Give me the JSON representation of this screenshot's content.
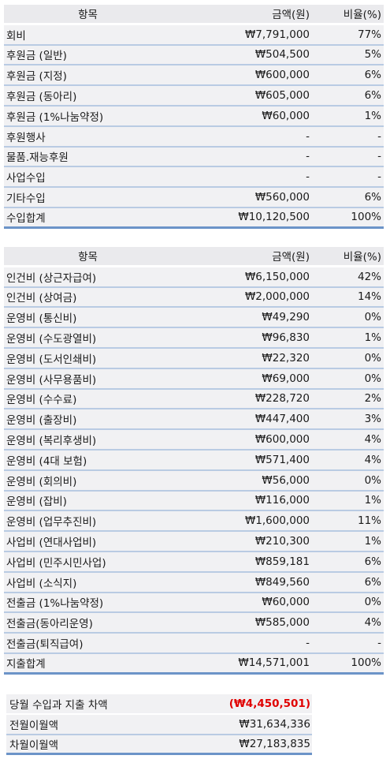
{
  "income": {
    "headers": [
      "항목",
      "금액(원)",
      "비율(%)"
    ],
    "rows": [
      {
        "item": "회비",
        "amount": "₩7,791,000",
        "ratio": "77%"
      },
      {
        "item": "후원금 (일반)",
        "amount": "₩504,500",
        "ratio": "5%"
      },
      {
        "item": "후원금 (지정)",
        "amount": "₩600,000",
        "ratio": "6%"
      },
      {
        "item": "후원금 (동아리)",
        "amount": "₩605,000",
        "ratio": "6%"
      },
      {
        "item": "후원금 (1%나눔약정)",
        "amount": "₩60,000",
        "ratio": "1%"
      },
      {
        "item": "후원행사",
        "amount": "-",
        "ratio": "-"
      },
      {
        "item": "물품.재능후원",
        "amount": "-",
        "ratio": "-"
      },
      {
        "item": "사업수입",
        "amount": "-",
        "ratio": "-"
      },
      {
        "item": "기타수입",
        "amount": "₩560,000",
        "ratio": "6%"
      }
    ],
    "total": {
      "item": "수입합계",
      "amount": "₩10,120,500",
      "ratio": "100%"
    }
  },
  "expense": {
    "headers": [
      "항목",
      "금액(원)",
      "비율(%)"
    ],
    "rows": [
      {
        "item": "인건비 (상근자급여)",
        "amount": "₩6,150,000",
        "ratio": "42%"
      },
      {
        "item": "인건비 (상여금)",
        "amount": "₩2,000,000",
        "ratio": "14%"
      },
      {
        "item": "운영비 (통신비)",
        "amount": "₩49,290",
        "ratio": "0%"
      },
      {
        "item": "운영비 (수도광열비)",
        "amount": "₩96,830",
        "ratio": "1%"
      },
      {
        "item": "운영비 (도서인쇄비)",
        "amount": "₩22,320",
        "ratio": "0%"
      },
      {
        "item": "운영비 (사무용품비)",
        "amount": "₩69,000",
        "ratio": "0%"
      },
      {
        "item": "운영비 (수수료)",
        "amount": "₩228,720",
        "ratio": "2%"
      },
      {
        "item": "운영비 (출장비)",
        "amount": "₩447,400",
        "ratio": "3%"
      },
      {
        "item": "운영비 (복리후생비)",
        "amount": "₩600,000",
        "ratio": "4%"
      },
      {
        "item": "운영비 (4대 보험)",
        "amount": "₩571,400",
        "ratio": "4%"
      },
      {
        "item": "운영비 (회의비)",
        "amount": "₩56,000",
        "ratio": "0%"
      },
      {
        "item": "운영비 (잡비)",
        "amount": "₩116,000",
        "ratio": "1%"
      },
      {
        "item": "운영비 (업무추진비)",
        "amount": "₩1,600,000",
        "ratio": "11%"
      },
      {
        "item": "사업비 (연대사업비)",
        "amount": "₩210,300",
        "ratio": "1%"
      },
      {
        "item": "사업비 (민주시민사업)",
        "amount": "₩859,181",
        "ratio": "6%"
      },
      {
        "item": "사업비 (소식지)",
        "amount": "₩849,560",
        "ratio": "6%"
      },
      {
        "item": "전출금 (1%나눔약정)",
        "amount": "₩60,000",
        "ratio": "0%"
      },
      {
        "item": "전출금(동아리운영)",
        "amount": "₩585,000",
        "ratio": "4%"
      },
      {
        "item": "전출금(퇴직급여)",
        "amount": "-",
        "ratio": "-"
      }
    ],
    "total": {
      "item": "지출합계",
      "amount": "₩14,571,001",
      "ratio": "100%"
    }
  },
  "summary": {
    "diff_label": "당월 수입과 지출 차액",
    "diff_value": "(₩4,450,501)",
    "prev_label": "전월이월액",
    "prev_value": "₩31,634,336",
    "next_label": "차월이월액",
    "next_value": "₩27,183,835"
  },
  "colors": {
    "negative": "#e00000",
    "row_bg": "#f1f1f3",
    "row_line": "#b9cbe3",
    "total_line": "#6c94c8"
  }
}
